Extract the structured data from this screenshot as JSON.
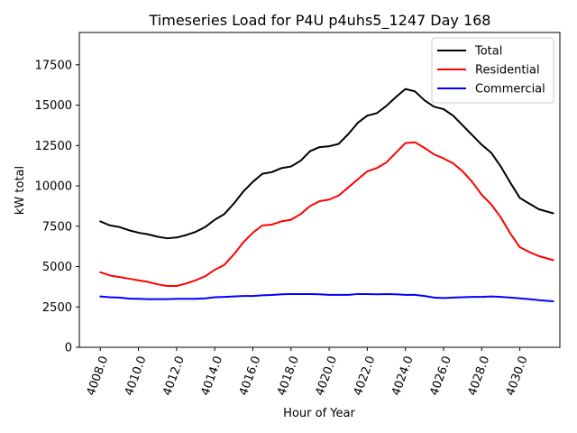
{
  "chart_data": {
    "type": "line",
    "title": "Timeseries Load for P4U p4uhs5_1247  Day 168",
    "xlabel": "Hour of Year",
    "ylabel": "kW total",
    "xlim": [
      4006.9,
      4032.1
    ],
    "ylim": [
      0,
      19500
    ],
    "xticks": [
      4008,
      4010,
      4012,
      4014,
      4016,
      4018,
      4020,
      4022,
      4024,
      4026,
      4028,
      4030
    ],
    "xtick_labels": [
      "4008.0",
      "4010.0",
      "4012.0",
      "4014.0",
      "4016.0",
      "4018.0",
      "4020.0",
      "4022.0",
      "4024.0",
      "4026.0",
      "4028.0",
      "4030.0"
    ],
    "yticks": [
      0,
      2500,
      5000,
      7500,
      10000,
      12500,
      15000,
      17500
    ],
    "ytick_labels": [
      "0",
      "2500",
      "5000",
      "7500",
      "10000",
      "12500",
      "15000",
      "17500"
    ],
    "legend_position": "top-right",
    "x": [
      4008.0,
      4008.5,
      4009.0,
      4009.5,
      4010.0,
      4010.5,
      4011.0,
      4011.5,
      4012.0,
      4012.5,
      4013.0,
      4013.5,
      4014.0,
      4014.5,
      4015.0,
      4015.5,
      4016.0,
      4016.5,
      4017.0,
      4017.5,
      4018.0,
      4018.5,
      4019.0,
      4019.5,
      4020.0,
      4020.5,
      4021.0,
      4021.5,
      4022.0,
      4022.5,
      4023.0,
      4023.5,
      4024.0,
      4024.5,
      4025.0,
      4025.5,
      4026.0,
      4026.5,
      4027.0,
      4027.5,
      4028.0,
      4028.5,
      4029.0,
      4029.5,
      4030.0,
      4030.5,
      4031.0,
      4031.75
    ],
    "series": [
      {
        "name": "Total",
        "color": "#000000",
        "values": [
          7800,
          7550,
          7450,
          7250,
          7100,
          7000,
          6850,
          6750,
          6800,
          6950,
          7150,
          7450,
          7900,
          8250,
          8900,
          9650,
          10250,
          10750,
          10850,
          11100,
          11200,
          11550,
          12150,
          12400,
          12450,
          12600,
          13200,
          13900,
          14350,
          14500,
          14950,
          15500,
          16000,
          15850,
          15300,
          14900,
          14750,
          14350,
          13750,
          13150,
          12550,
          12050,
          11200,
          10200,
          9250,
          8900,
          8550,
          8300
        ]
      },
      {
        "name": "Residential",
        "color": "#ff0000",
        "values": [
          4650,
          4450,
          4350,
          4250,
          4150,
          4050,
          3900,
          3800,
          3800,
          3950,
          4150,
          4400,
          4800,
          5100,
          5750,
          6500,
          7100,
          7550,
          7600,
          7800,
          7900,
          8250,
          8750,
          9050,
          9150,
          9400,
          9900,
          10400,
          10900,
          11100,
          11450,
          12050,
          12650,
          12700,
          12350,
          11950,
          11700,
          11400,
          10900,
          10250,
          9450,
          8850,
          8050,
          7050,
          6200,
          5900,
          5650,
          5400
        ]
      },
      {
        "name": "Commercial",
        "color": "#0000ff",
        "values": [
          3150,
          3100,
          3080,
          3020,
          3000,
          2980,
          2980,
          2980,
          3000,
          3000,
          3000,
          3030,
          3100,
          3120,
          3150,
          3180,
          3180,
          3220,
          3240,
          3280,
          3300,
          3300,
          3300,
          3280,
          3250,
          3250,
          3250,
          3300,
          3300,
          3280,
          3300,
          3280,
          3250,
          3250,
          3180,
          3080,
          3050,
          3080,
          3100,
          3120,
          3120,
          3150,
          3120,
          3080,
          3030,
          2980,
          2920,
          2850
        ]
      }
    ]
  }
}
